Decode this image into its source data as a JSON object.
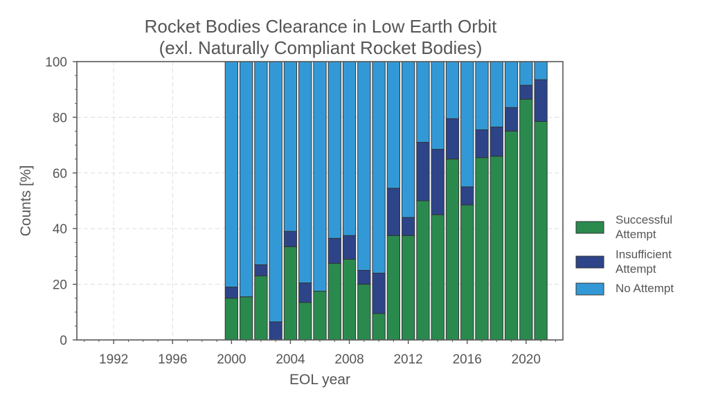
{
  "chart_data": {
    "type": "bar",
    "stacked": true,
    "title_line1": "Rocket Bodies Clearance in Low Earth Orbit",
    "title_line2": "(exl. Naturally Compliant Rocket Bodies)",
    "xlabel": "EOL year",
    "ylabel": "Counts [%]",
    "xlim": [
      1989.5,
      2022.5
    ],
    "ylim": [
      0,
      100
    ],
    "xticks": [
      1992,
      1996,
      2000,
      2004,
      2008,
      2012,
      2016,
      2020
    ],
    "yticks": [
      0,
      20,
      40,
      60,
      80,
      100
    ],
    "grid": true,
    "legend_position": "right",
    "categories": [
      2000,
      2001,
      2002,
      2003,
      2004,
      2005,
      2006,
      2007,
      2008,
      2009,
      2010,
      2011,
      2012,
      2013,
      2014,
      2015,
      2016,
      2017,
      2018,
      2019,
      2020,
      2021
    ],
    "series": [
      {
        "name": "Successful Attempt",
        "legend_lines": [
          "Successful",
          "Attempt"
        ],
        "color": "#2a8a4e",
        "values": [
          15,
          15.5,
          23,
          0,
          33.5,
          13.5,
          17.5,
          27.5,
          29,
          20,
          9.5,
          37.5,
          37.5,
          50,
          45,
          65,
          48.5,
          65.5,
          66,
          75,
          86.5,
          78.5
        ]
      },
      {
        "name": "Insufficient Attempt",
        "legend_lines": [
          "Insufficient",
          "Attempt"
        ],
        "color": "#2d4489",
        "values": [
          4,
          0,
          4,
          6.5,
          5.5,
          7,
          0,
          9,
          8.5,
          5,
          14.5,
          17,
          6.5,
          21,
          23.5,
          14.5,
          6.5,
          10,
          10.5,
          8.5,
          5,
          15
        ]
      },
      {
        "name": "No Attempt",
        "legend_lines": [
          "No Attempt"
        ],
        "color": "#3399d6",
        "values": [
          81,
          84.5,
          73,
          93.5,
          61,
          79.5,
          82.5,
          63.5,
          62.5,
          75,
          76,
          45.5,
          56,
          29,
          31.5,
          20.5,
          45,
          24.5,
          23.5,
          16.5,
          8.5,
          6.5
        ]
      }
    ]
  }
}
